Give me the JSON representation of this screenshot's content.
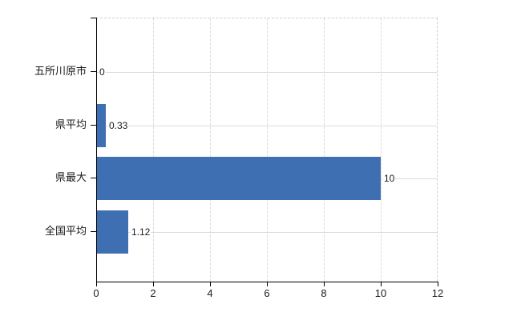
{
  "chart_data": {
    "type": "bar",
    "orientation": "horizontal",
    "categories": [
      "五所川原市",
      "県平均",
      "県最大",
      "全国平均"
    ],
    "values": [
      0,
      0.33,
      10,
      1.12
    ],
    "value_labels": [
      "0",
      "0.33",
      "10",
      "1.12"
    ],
    "x_ticks": [
      0,
      2,
      4,
      6,
      8,
      10,
      12
    ],
    "x_tick_labels": [
      "0",
      "2",
      "4",
      "6",
      "8",
      "10",
      "12"
    ],
    "xlim": [
      0,
      12
    ],
    "grid": true,
    "legend": false
  },
  "colors": {
    "bar": "#3e6fb2",
    "axis": "#000000",
    "grid-vertical": "#d9d9d9",
    "grid-horizontal": "#d6ded6",
    "border": "#cfcfcf",
    "text": "#1a1a1a"
  }
}
